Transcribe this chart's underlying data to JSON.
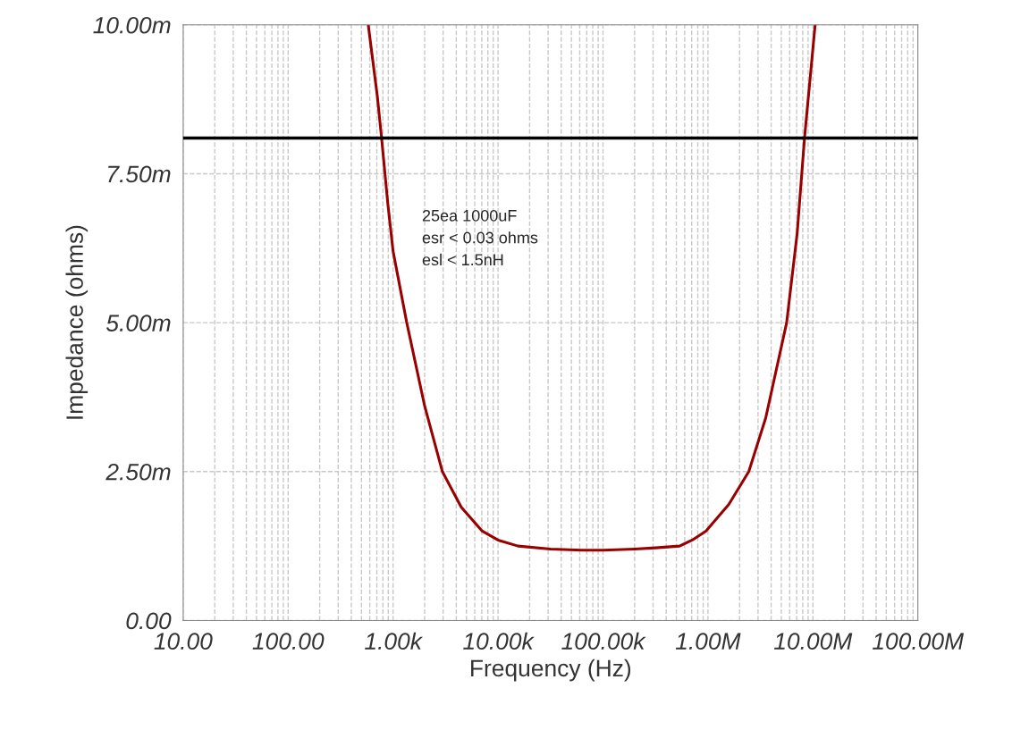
{
  "chart_data": {
    "type": "line",
    "xlabel": "Frequency (Hz)",
    "ylabel": "Impedance (ohms)",
    "log": "x",
    "xlim": [
      10,
      100000000
    ],
    "xticks": [
      {
        "value": 10,
        "label": "10.00"
      },
      {
        "value": 100,
        "label": "100.00"
      },
      {
        "value": 1000,
        "label": "1.00k"
      },
      {
        "value": 10000,
        "label": "10.00k"
      },
      {
        "value": 100000,
        "label": "100.00k"
      },
      {
        "value": 1000000,
        "label": "1.00M"
      },
      {
        "value": 10000000,
        "label": "10.00M"
      },
      {
        "value": 100000000,
        "label": "100.00M"
      }
    ],
    "ylim": [
      0,
      10
    ],
    "yticks": [
      {
        "value": 0,
        "label": "0.00"
      },
      {
        "value": 2.5,
        "label": "2.50m"
      },
      {
        "value": 5,
        "label": "5.00m"
      },
      {
        "value": 7.5,
        "label": "7.50m"
      },
      {
        "value": 10,
        "label": "10.00m"
      }
    ],
    "grid": true,
    "series": [
      {
        "color": "#990000",
        "x": [
          580,
          708,
          777,
          891,
          1000,
          1350,
          2000,
          2950,
          4470,
          7080,
          10000,
          15500,
          31600,
          63100,
          100000,
          200000,
          316000,
          537000,
          708000,
          955000,
          1580000,
          2450000,
          3550000,
          5620000,
          7080000,
          8320000,
          10500000
        ],
        "values": [
          10.0,
          8.8,
          8.1,
          7.0,
          6.2,
          5.0,
          3.6,
          2.5,
          1.9,
          1.5,
          1.35,
          1.25,
          1.2,
          1.18,
          1.18,
          1.2,
          1.22,
          1.25,
          1.35,
          1.5,
          1.95,
          2.5,
          3.4,
          5.0,
          6.5,
          8.1,
          10.0
        ]
      }
    ],
    "ref_lines": [
      {
        "axis": "y",
        "value": 8.1,
        "color": "#000000"
      }
    ],
    "annotations": [
      "25ea 1000uF\nesr < 0.03 ohms\nesl < 1.5nH"
    ]
  }
}
